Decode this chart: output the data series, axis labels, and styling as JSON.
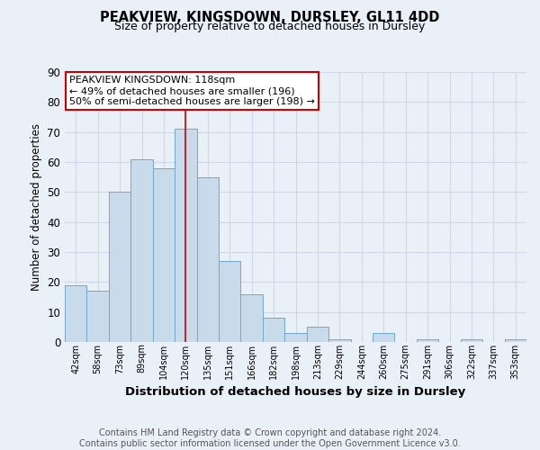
{
  "title": "PEAKVIEW, KINGSDOWN, DURSLEY, GL11 4DD",
  "subtitle": "Size of property relative to detached houses in Dursley",
  "xlabel": "Distribution of detached houses by size in Dursley",
  "ylabel": "Number of detached properties",
  "categories": [
    "42sqm",
    "58sqm",
    "73sqm",
    "89sqm",
    "104sqm",
    "120sqm",
    "135sqm",
    "151sqm",
    "166sqm",
    "182sqm",
    "198sqm",
    "213sqm",
    "229sqm",
    "244sqm",
    "260sqm",
    "275sqm",
    "291sqm",
    "306sqm",
    "322sqm",
    "337sqm",
    "353sqm"
  ],
  "values": [
    19,
    17,
    50,
    61,
    58,
    71,
    55,
    27,
    16,
    8,
    3,
    5,
    1,
    0,
    3,
    0,
    1,
    0,
    1,
    0,
    1
  ],
  "bar_color": "#c9daea",
  "bar_edge_color": "#6fa8d0",
  "grid_color": "#d0d8e8",
  "background_color": "#eaf0f8",
  "marker_index": 5,
  "marker_color": "#cc0000",
  "annotation_line1": "PEAKVIEW KINGSDOWN: 118sqm",
  "annotation_line2": "← 49% of detached houses are smaller (196)",
  "annotation_line3": "50% of semi-detached houses are larger (198) →",
  "annotation_box_color": "#ffffff",
  "annotation_box_edge": "#cc0000",
  "footer_text": "Contains HM Land Registry data © Crown copyright and database right 2024.\nContains public sector information licensed under the Open Government Licence v3.0.",
  "ylim": [
    0,
    90
  ],
  "yticks": [
    0,
    10,
    20,
    30,
    40,
    50,
    60,
    70,
    80,
    90
  ]
}
